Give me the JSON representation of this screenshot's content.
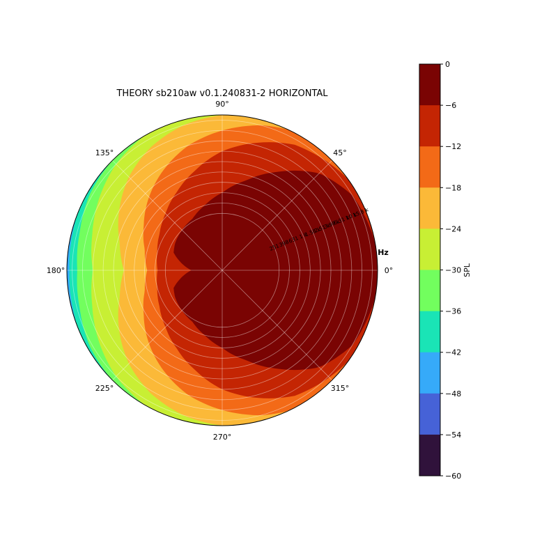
{
  "chart_data": {
    "type": "heatmap",
    "projection": "polar",
    "title": "THEORY sb210aw v0.1.240831-2 HORIZONTAL",
    "radial_unit_label": "Hz",
    "radial_scale": "log",
    "radial_range_hz": [
      20,
      20000
    ],
    "angular_tick_labels": [
      "0°",
      "45°",
      "90°",
      "135°",
      "180°",
      "225°",
      "270°",
      "315°"
    ],
    "radial_tick_labels": [
      "251",
      "398",
      "631",
      "1 k",
      "1.58 k",
      "2.51 k",
      "3.98 k",
      "6.31 k",
      "10 k",
      "15.8 k"
    ],
    "radial_tick_values_hz": [
      251,
      398,
      631,
      1000,
      1580,
      2510,
      3980,
      6310,
      10000,
      15800
    ],
    "grid": true,
    "colorbar": {
      "label": "SPL",
      "range": [
        -60,
        0
      ],
      "ticks": [
        0,
        -6,
        -12,
        -18,
        -24,
        -30,
        -36,
        -42,
        -48,
        -54,
        -60
      ],
      "tick_labels": [
        "0",
        "−6",
        "−12",
        "−18",
        "−24",
        "−30",
        "−36",
        "−42",
        "−48",
        "−54",
        "−60"
      ],
      "levels": [
        {
          "from": -6,
          "to": 0,
          "color": "#7a0403"
        },
        {
          "from": -12,
          "to": -6,
          "color": "#c42503"
        },
        {
          "from": -18,
          "to": -12,
          "color": "#f36a17"
        },
        {
          "from": -24,
          "to": -18,
          "color": "#fbb938"
        },
        {
          "from": -30,
          "to": -24,
          "color": "#c8ef34"
        },
        {
          "from": -36,
          "to": -30,
          "color": "#72fe5e"
        },
        {
          "from": -42,
          "to": -36,
          "color": "#1ae4b6"
        },
        {
          "from": -48,
          "to": -42,
          "color": "#36aaf9"
        },
        {
          "from": -54,
          "to": -48,
          "color": "#4662d7"
        },
        {
          "from": -60,
          "to": -54,
          "color": "#30123b"
        }
      ]
    },
    "contour_boundaries": [
      {
        "level": -6,
        "angles_deg": [
          0,
          30,
          45,
          60,
          75,
          90,
          105,
          120,
          135,
          150,
          160,
          170,
          180
        ],
        "log10_freq": [
          4.35,
          4.2,
          3.95,
          3.5,
          3.1,
          2.8,
          2.6,
          2.45,
          2.4,
          2.35,
          2.3,
          2.1,
          1.9
        ]
      },
      {
        "level": -12,
        "angles_deg": [
          0,
          30,
          60,
          75,
          90,
          105,
          120,
          135,
          150,
          165,
          180
        ],
        "log10_freq": [
          4.4,
          4.35,
          4.1,
          3.85,
          3.6,
          3.3,
          3.05,
          2.85,
          2.7,
          2.6,
          2.55
        ]
      },
      {
        "level": -18,
        "angles_deg": [
          0,
          45,
          60,
          75,
          90,
          105,
          120,
          135,
          150,
          165,
          180
        ],
        "log10_freq": [
          4.4,
          4.4,
          4.35,
          4.2,
          4.0,
          3.8,
          3.55,
          3.3,
          3.05,
          2.85,
          2.75
        ]
      },
      {
        "level": -24,
        "angles_deg": [
          0,
          60,
          90,
          105,
          120,
          135,
          150,
          165,
          180
        ],
        "log10_freq": [
          4.4,
          4.4,
          4.3,
          4.2,
          4.05,
          3.85,
          3.6,
          3.35,
          3.2
        ]
      },
      {
        "level": -30,
        "angles_deg": [
          0,
          90,
          105,
          120,
          135,
          150,
          165,
          180
        ],
        "log10_freq": [
          4.4,
          4.4,
          4.35,
          4.3,
          4.2,
          4.05,
          3.9,
          3.8
        ]
      },
      {
        "level": -36,
        "angles_deg": [
          0,
          105,
          120,
          135,
          150,
          165,
          180
        ],
        "log10_freq": [
          4.4,
          4.4,
          4.35,
          4.3,
          4.25,
          4.15,
          4.1
        ]
      },
      {
        "level": -42,
        "angles_deg": [
          0,
          120,
          135,
          150,
          165,
          180
        ],
        "log10_freq": [
          4.4,
          4.4,
          4.38,
          4.33,
          4.28,
          4.25
        ]
      },
      {
        "level": -48,
        "angles_deg": [
          0,
          130,
          145,
          160,
          180
        ],
        "log10_freq": [
          4.4,
          4.4,
          4.37,
          4.35,
          4.33
        ]
      }
    ]
  }
}
